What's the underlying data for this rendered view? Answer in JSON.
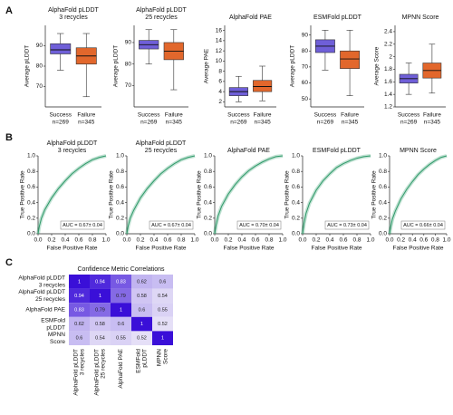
{
  "chart_data": [
    {
      "type": "box",
      "panel": "A",
      "title": [
        "AlphaFold pLDDT",
        "3 recycles"
      ],
      "y_label": "Average pLDDT",
      "categories": [
        "Success",
        "Failure"
      ],
      "counts": [
        "n=269",
        "n=345"
      ],
      "colors": [
        "#6f5fd8",
        "#e2672c"
      ],
      "boxes": [
        {
          "whisker_low": 78,
          "q1": 86,
          "median": 88,
          "q3": 91,
          "whisker_high": 96
        },
        {
          "whisker_low": 65,
          "q1": 81,
          "median": 85,
          "q3": 89,
          "whisker_high": 96
        }
      ],
      "ylim": [
        60,
        100
      ],
      "yticks": [
        70,
        80,
        90
      ]
    },
    {
      "type": "box",
      "title": [
        "AlphaFold pLDDT",
        "25 recycles"
      ],
      "y_label": "Average pLDDT",
      "categories": [
        "Success",
        "Failure"
      ],
      "counts": [
        "n=269",
        "n=345"
      ],
      "colors": [
        "#6f5fd8",
        "#e2672c"
      ],
      "boxes": [
        {
          "whisker_low": 80,
          "q1": 87,
          "median": 89,
          "q3": 91,
          "whisker_high": 96
        },
        {
          "whisker_low": 68,
          "q1": 82,
          "median": 86,
          "q3": 90,
          "whisker_high": 96
        }
      ],
      "ylim": [
        60,
        98
      ],
      "yticks": [
        70,
        80,
        90
      ]
    },
    {
      "type": "box",
      "title": [
        "AlphaFold PAE"
      ],
      "y_label": "Average PAE",
      "categories": [
        "Success",
        "Failure"
      ],
      "counts": [
        "n=269",
        "n=345"
      ],
      "colors": [
        "#6f5fd8",
        "#e2672c"
      ],
      "boxes": [
        {
          "whisker_low": 2,
          "q1": 3.2,
          "median": 4,
          "q3": 4.8,
          "whisker_high": 7
        },
        {
          "whisker_low": 2.2,
          "q1": 4,
          "median": 5,
          "q3": 6.2,
          "whisker_high": 9
        }
      ],
      "ylim": [
        1,
        17
      ],
      "yticks": [
        2,
        4,
        6,
        8,
        10,
        12,
        14,
        16
      ]
    },
    {
      "type": "box",
      "title": [
        "ESMFold pLDDT"
      ],
      "y_label": "Average pLDDT",
      "categories": [
        "Success",
        "Failure"
      ],
      "counts": [
        "n=269",
        "n=345"
      ],
      "colors": [
        "#6f5fd8",
        "#e2672c"
      ],
      "boxes": [
        {
          "whisker_low": 68,
          "q1": 79,
          "median": 83,
          "q3": 87,
          "whisker_high": 93
        },
        {
          "whisker_low": 52,
          "q1": 69,
          "median": 75,
          "q3": 80,
          "whisker_high": 93
        }
      ],
      "ylim": [
        45,
        96
      ],
      "yticks": [
        50,
        60,
        70,
        80,
        90
      ]
    },
    {
      "type": "box",
      "title": [
        "MPNN Score"
      ],
      "y_label": "Average Score",
      "categories": [
        "Success",
        "Failure"
      ],
      "counts": [
        "n=269",
        "n=345"
      ],
      "colors": [
        "#6f5fd8",
        "#e2672c"
      ],
      "boxes": [
        {
          "whisker_low": 1.4,
          "q1": 1.58,
          "median": 1.65,
          "q3": 1.72,
          "whisker_high": 1.9
        },
        {
          "whisker_low": 1.42,
          "q1": 1.66,
          "median": 1.78,
          "q3": 1.9,
          "whisker_high": 2.2
        }
      ],
      "ylim": [
        1.2,
        2.5
      ],
      "yticks": [
        1.2,
        1.4,
        1.6,
        1.8,
        2,
        2.2,
        2.4
      ]
    },
    {
      "type": "line",
      "panel": "B",
      "title": [
        "AlphaFold pLDDT",
        "3 recycles"
      ],
      "x_label": "False Positive Rate",
      "y_label": "True Positive Rate",
      "x": [
        0,
        0.02,
        0.05,
        0.1,
        0.2,
        0.3,
        0.4,
        0.5,
        0.6,
        0.7,
        0.8,
        0.9,
        1
      ],
      "values": [
        0,
        0.1,
        0.2,
        0.31,
        0.46,
        0.58,
        0.68,
        0.77,
        0.84,
        0.9,
        0.95,
        0.98,
        1
      ],
      "color": "#2f9a6a",
      "annotation": "AUC = 0.67± 0.04",
      "xlim": [
        0,
        1
      ],
      "ylim": [
        0,
        1
      ],
      "xticks": [
        {
          "value": 0,
          "label": "0.0"
        },
        {
          "value": 0.2,
          "label": "0.2"
        },
        {
          "value": 0.4,
          "label": "0.4"
        },
        {
          "value": 0.6,
          "label": "0.6"
        },
        {
          "value": 0.8,
          "label": "0.8"
        },
        {
          "value": 1,
          "label": "1.0"
        }
      ],
      "yticks": [
        {
          "value": 0,
          "label": "0.0"
        },
        {
          "value": 0.2,
          "label": "0.2"
        },
        {
          "value": 0.4,
          "label": "0.4"
        },
        {
          "value": 0.6,
          "label": "0.6"
        },
        {
          "value": 0.8,
          "label": "0.8"
        },
        {
          "value": 1,
          "label": "1.0"
        }
      ]
    },
    {
      "type": "line",
      "title": [
        "AlphaFold pLDDT",
        "25 recycles"
      ],
      "x_label": "False Positive Rate",
      "y_label": "True Positive Rate",
      "x": [
        0,
        0.02,
        0.05,
        0.1,
        0.2,
        0.3,
        0.4,
        0.5,
        0.6,
        0.7,
        0.8,
        0.9,
        1
      ],
      "values": [
        0,
        0.1,
        0.2,
        0.3,
        0.46,
        0.58,
        0.68,
        0.77,
        0.84,
        0.9,
        0.95,
        0.98,
        1
      ],
      "color": "#2f9a6a",
      "annotation": "AUC = 0.67± 0.04",
      "xlim": [
        0,
        1
      ],
      "ylim": [
        0,
        1
      ],
      "xticks": [
        {
          "value": 0,
          "label": "0.0"
        },
        {
          "value": 0.2,
          "label": "0.2"
        },
        {
          "value": 0.4,
          "label": "0.4"
        },
        {
          "value": 0.6,
          "label": "0.6"
        },
        {
          "value": 0.8,
          "label": "0.8"
        },
        {
          "value": 1,
          "label": "1.0"
        }
      ],
      "yticks": [
        {
          "value": 0,
          "label": "0.0"
        },
        {
          "value": 0.2,
          "label": "0.2"
        },
        {
          "value": 0.4,
          "label": "0.4"
        },
        {
          "value": 0.6,
          "label": "0.6"
        },
        {
          "value": 0.8,
          "label": "0.8"
        },
        {
          "value": 1,
          "label": "1.0"
        }
      ]
    },
    {
      "type": "line",
      "title": [
        "AlphaFold PAE"
      ],
      "x_label": "False Positive Rate",
      "y_label": "True Positive Rate",
      "x": [
        0,
        0.02,
        0.05,
        0.1,
        0.2,
        0.3,
        0.4,
        0.5,
        0.6,
        0.7,
        0.8,
        0.9,
        1
      ],
      "values": [
        0,
        0.11,
        0.23,
        0.35,
        0.51,
        0.63,
        0.73,
        0.81,
        0.87,
        0.92,
        0.96,
        0.99,
        1
      ],
      "color": "#2f9a6a",
      "annotation": "AUC = 0.70± 0.04",
      "xlim": [
        0,
        1
      ],
      "ylim": [
        0,
        1
      ],
      "xticks": [
        {
          "value": 0,
          "label": "0.0"
        },
        {
          "value": 0.2,
          "label": "0.2"
        },
        {
          "value": 0.4,
          "label": "0.4"
        },
        {
          "value": 0.6,
          "label": "0.6"
        },
        {
          "value": 0.8,
          "label": "0.8"
        },
        {
          "value": 1,
          "label": "1.0"
        }
      ],
      "yticks": [
        {
          "value": 0,
          "label": "0.0"
        },
        {
          "value": 0.2,
          "label": "0.2"
        },
        {
          "value": 0.4,
          "label": "0.4"
        },
        {
          "value": 0.6,
          "label": "0.6"
        },
        {
          "value": 0.8,
          "label": "0.8"
        },
        {
          "value": 1,
          "label": "1.0"
        }
      ]
    },
    {
      "type": "line",
      "title": [
        "ESMFold pLDDT"
      ],
      "x_label": "False Positive Rate",
      "y_label": "True Positive Rate",
      "x": [
        0,
        0.02,
        0.05,
        0.1,
        0.2,
        0.3,
        0.4,
        0.5,
        0.6,
        0.7,
        0.8,
        0.9,
        1
      ],
      "values": [
        0,
        0.13,
        0.26,
        0.39,
        0.56,
        0.68,
        0.77,
        0.85,
        0.9,
        0.94,
        0.97,
        0.99,
        1
      ],
      "color": "#2f9a6a",
      "annotation": "AUC = 0.73± 0.04",
      "xlim": [
        0,
        1
      ],
      "ylim": [
        0,
        1
      ],
      "xticks": [
        {
          "value": 0,
          "label": "0.0"
        },
        {
          "value": 0.2,
          "label": "0.2"
        },
        {
          "value": 0.4,
          "label": "0.4"
        },
        {
          "value": 0.6,
          "label": "0.6"
        },
        {
          "value": 0.8,
          "label": "0.8"
        },
        {
          "value": 1,
          "label": "1.0"
        }
      ],
      "yticks": [
        {
          "value": 0,
          "label": "0.0"
        },
        {
          "value": 0.2,
          "label": "0.2"
        },
        {
          "value": 0.4,
          "label": "0.4"
        },
        {
          "value": 0.6,
          "label": "0.6"
        },
        {
          "value": 0.8,
          "label": "0.8"
        },
        {
          "value": 1,
          "label": "1.0"
        }
      ]
    },
    {
      "type": "line",
      "title": [
        "MPNN Score"
      ],
      "x_label": "False Positive Rate",
      "y_label": "True Positive Rate",
      "x": [
        0,
        0.02,
        0.05,
        0.1,
        0.2,
        0.3,
        0.4,
        0.5,
        0.6,
        0.7,
        0.8,
        0.9,
        1
      ],
      "values": [
        0,
        0.09,
        0.19,
        0.29,
        0.45,
        0.57,
        0.67,
        0.76,
        0.83,
        0.89,
        0.94,
        0.98,
        1
      ],
      "color": "#2f9a6a",
      "annotation": "AUC = 0.66± 0.04",
      "xlim": [
        0,
        1
      ],
      "ylim": [
        0,
        1
      ],
      "xticks": [
        {
          "value": 0,
          "label": "0.0"
        },
        {
          "value": 0.2,
          "label": "0.2"
        },
        {
          "value": 0.4,
          "label": "0.4"
        },
        {
          "value": 0.6,
          "label": "0.6"
        },
        {
          "value": 0.8,
          "label": "0.8"
        },
        {
          "value": 1,
          "label": "1.0"
        }
      ],
      "yticks": [
        {
          "value": 0,
          "label": "0.0"
        },
        {
          "value": 0.2,
          "label": "0.2"
        },
        {
          "value": 0.4,
          "label": "0.4"
        },
        {
          "value": 0.6,
          "label": "0.6"
        },
        {
          "value": 0.8,
          "label": "0.8"
        },
        {
          "value": 1,
          "label": "1.0"
        }
      ]
    },
    {
      "type": "heatmap",
      "panel": "C",
      "title": [
        "Confidence Metric Correlations"
      ],
      "rows": [
        [
          "AlphaFold pLDDT",
          "3 recycles"
        ],
        [
          "AlphaFold pLDDT",
          "25 recycles"
        ],
        [
          "AlphaFold PAE"
        ],
        [
          "ESMFold",
          "pLDDT"
        ],
        [
          "MPNN",
          "Score"
        ]
      ],
      "columns": [
        [
          "AlphaFold pLDDT",
          "3 recycles"
        ],
        [
          "AlphaFold pLDDT",
          "25 recycles"
        ],
        [
          "AlphaFold PAE"
        ],
        [
          "ESMFold",
          "pLDDT"
        ],
        [
          "MPNN",
          "Score"
        ]
      ],
      "values": [
        [
          1,
          0.94,
          0.83,
          0.62,
          0.6
        ],
        [
          0.94,
          1,
          0.79,
          0.58,
          0.54
        ],
        [
          0.83,
          0.79,
          1,
          0.6,
          0.55
        ],
        [
          0.62,
          0.58,
          0.6,
          1,
          0.52
        ],
        [
          0.6,
          0.54,
          0.55,
          0.52,
          1
        ]
      ],
      "colors": [
        "#ece8f8",
        "#3a0fd8"
      ]
    }
  ]
}
